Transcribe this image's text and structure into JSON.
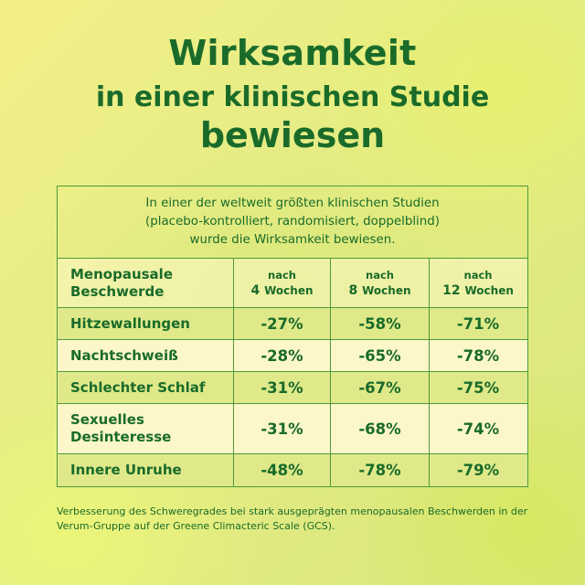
{
  "heading": {
    "line1": "Wirksamkeit",
    "line2": "in einer klinischen Studie",
    "line3": "bewiesen"
  },
  "intro": {
    "line1": "In einer der weltweit größten klinischen Studien",
    "line2": "(placebo-kontrolliert, randomisiert, doppelblind)",
    "line3": "wurde die Wirksamkeit bewiesen."
  },
  "table": {
    "header": {
      "label_line1": "Menopausale",
      "label_line2": "Beschwerde",
      "cols": [
        {
          "prefix": "nach",
          "number": "4",
          "unit": "Wochen"
        },
        {
          "prefix": "nach",
          "number": "8",
          "unit": "Wochen"
        },
        {
          "prefix": "nach",
          "number": "12",
          "unit": "Wochen"
        }
      ]
    },
    "rows": [
      {
        "label": "Hitzewallungen",
        "values": [
          "-27%",
          "-58%",
          "-71%"
        ]
      },
      {
        "label": "Nachtschweiß",
        "values": [
          "-28%",
          "-65%",
          "-78%"
        ]
      },
      {
        "label": "Schlechter Schlaf",
        "values": [
          "-31%",
          "-67%",
          "-75%"
        ]
      },
      {
        "label_line1": "Sexuelles",
        "label_line2": "Desinteresse",
        "values": [
          "-31%",
          "-68%",
          "-74%"
        ]
      },
      {
        "label": "Innere Unruhe",
        "values": [
          "-48%",
          "-78%",
          "-79%"
        ]
      }
    ]
  },
  "footnote": {
    "line1": "Verbesserung des Schweregrades bei stark ausgeprägten menopausalen Beschwerden in der",
    "line2": "Verum-Gruppe auf der Greene Climacteric Scale (GCS)."
  }
}
